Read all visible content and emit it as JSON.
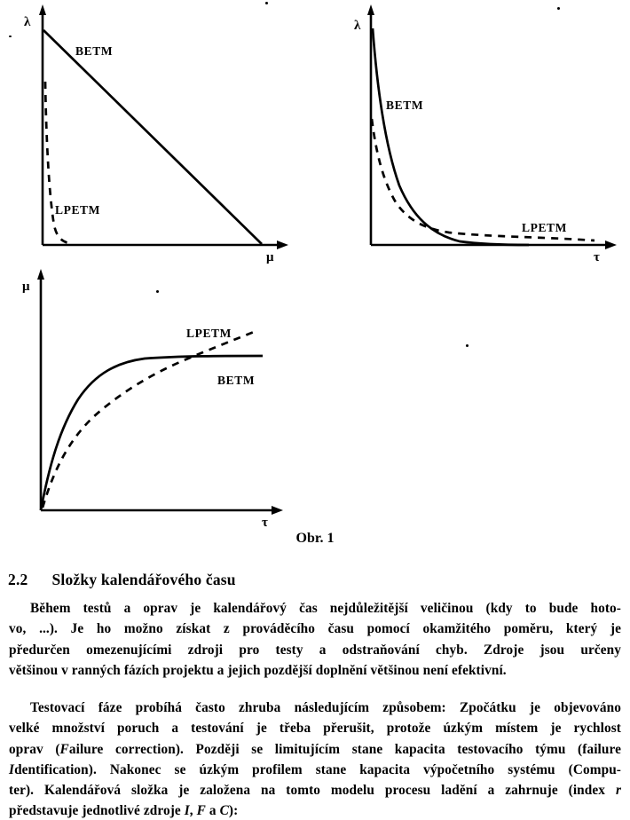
{
  "page": {
    "background": "#ffffff",
    "text_color": "#000000"
  },
  "figure": {
    "caption": "Obr. 1",
    "panels": [
      {
        "position": "top-left",
        "y_axis_label": "λ",
        "x_axis_label": "μ",
        "curve_labels": {
          "solid": "BETM",
          "dashed": "LPETM"
        }
      },
      {
        "position": "top-right",
        "y_axis_label": "λ",
        "x_axis_label": "τ",
        "curve_labels": {
          "solid": "BETM",
          "dashed": "LPETM"
        }
      },
      {
        "position": "bottom-left",
        "y_axis_label": "μ",
        "x_axis_label": "τ",
        "curve_labels": {
          "solid": "BETM",
          "dashed": "LPETM"
        }
      }
    ]
  },
  "chart_data": [
    {
      "type": "line",
      "panel": "top-left",
      "title": "",
      "xlabel": "μ",
      "ylabel": "λ",
      "grid": false,
      "legend_position": "inline-annotations",
      "xlim": [
        0,
        1
      ],
      "ylim": [
        0,
        1
      ],
      "note": "qualitative sketch without tick values; normalized estimates",
      "series": [
        {
          "name": "BETM",
          "line_style": "solid",
          "points": [
            [
              0,
              1.0
            ],
            [
              0.87,
              0
            ]
          ]
        },
        {
          "name": "LPETM",
          "line_style": "dashed",
          "points": [
            [
              0.01,
              0.72
            ],
            [
              0.03,
              0.4
            ],
            [
              0.06,
              0.12
            ],
            [
              0.11,
              0
            ]
          ]
        }
      ]
    },
    {
      "type": "line",
      "panel": "top-right",
      "title": "",
      "xlabel": "τ",
      "ylabel": "λ",
      "grid": false,
      "legend_position": "inline-annotations",
      "xlim": [
        0,
        1
      ],
      "ylim": [
        0,
        1
      ],
      "note": "qualitative sketch without tick values; normalized estimates",
      "series": [
        {
          "name": "BETM",
          "line_style": "solid",
          "points": [
            [
              0,
              1.0
            ],
            [
              0.08,
              0.6
            ],
            [
              0.16,
              0.3
            ],
            [
              0.28,
              0.11
            ],
            [
              0.42,
              0.03
            ],
            [
              0.62,
              0.0
            ]
          ]
        },
        {
          "name": "LPETM",
          "line_style": "dashed",
          "points": [
            [
              0,
              0.55
            ],
            [
              0.08,
              0.32
            ],
            [
              0.18,
              0.15
            ],
            [
              0.3,
              0.07
            ],
            [
              0.5,
              0.04
            ],
            [
              0.75,
              0.03
            ],
            [
              0.97,
              0.02
            ]
          ]
        }
      ]
    },
    {
      "type": "line",
      "panel": "bottom-left",
      "title": "",
      "xlabel": "τ",
      "ylabel": "μ",
      "grid": false,
      "legend_position": "inline-annotations",
      "xlim": [
        0,
        1
      ],
      "ylim": [
        0,
        1
      ],
      "note": "qualitative sketch without tick values; BETM saturates, LPETM keeps rising and crosses BETM",
      "series": [
        {
          "name": "BETM",
          "line_style": "solid",
          "points": [
            [
              0,
              0
            ],
            [
              0.1,
              0.3
            ],
            [
              0.2,
              0.48
            ],
            [
              0.35,
              0.58
            ],
            [
              0.55,
              0.62
            ],
            [
              0.95,
              0.62
            ]
          ]
        },
        {
          "name": "LPETM",
          "line_style": "dashed",
          "points": [
            [
              0.01,
              0.01
            ],
            [
              0.12,
              0.28
            ],
            [
              0.3,
              0.44
            ],
            [
              0.5,
              0.58
            ],
            [
              0.7,
              0.68
            ],
            [
              0.93,
              0.78
            ]
          ]
        }
      ]
    }
  ],
  "section": {
    "number": "2.2",
    "title": "Složky kalendářového času"
  },
  "paragraphs": [
    {
      "lines": [
        [
          {
            "t": "Během testů a oprav je kalendářový čas nejdůležitější veličinou (kdy to bude hoto-"
          }
        ],
        [
          {
            "t": "vo, ...). Je ho možno získat z prováděcího času pomocí okamžitého poměru, který je"
          }
        ],
        [
          {
            "t": "předurčen omezenujícími zdroji pro testy a odstraňování chyb. Zdroje jsou určeny"
          }
        ],
        [
          {
            "t": "většinou v ranných fázích projektu a jejich pozdější doplnění většinou není efektivní."
          }
        ]
      ]
    },
    {
      "lines": [
        [
          {
            "t": "Testovací fáze probíhá často zhruba následujícím způsobem: Zpočátku je objevováno"
          }
        ],
        [
          {
            "t": "velké množství poruch a testování je třeba přerušit, protože úzkým místem je rychlost"
          }
        ],
        [
          {
            "t": "oprav ("
          },
          {
            "t": "F",
            "i": true
          },
          {
            "t": "ailure correction). Později se limitujícím stane kapacita testovacího týmu (failure"
          }
        ],
        [
          {
            "t": "I",
            "i": true
          },
          {
            "t": "dentification). Nakonec se úzkým profilem stane kapacita výpočetního systému (Compu-"
          }
        ],
        [
          {
            "t": "ter). Kalendářová složka je založena na tomto modelu procesu ladění a zahrnuje (index "
          },
          {
            "t": "r",
            "i": true
          }
        ],
        [
          {
            "t": "představuje jednotlivé zdroje "
          },
          {
            "t": "I",
            "i": true
          },
          {
            "t": ", "
          },
          {
            "t": "F",
            "i": true
          },
          {
            "t": " a "
          },
          {
            "t": "C",
            "i": true
          },
          {
            "t": "):"
          }
        ]
      ]
    }
  ]
}
